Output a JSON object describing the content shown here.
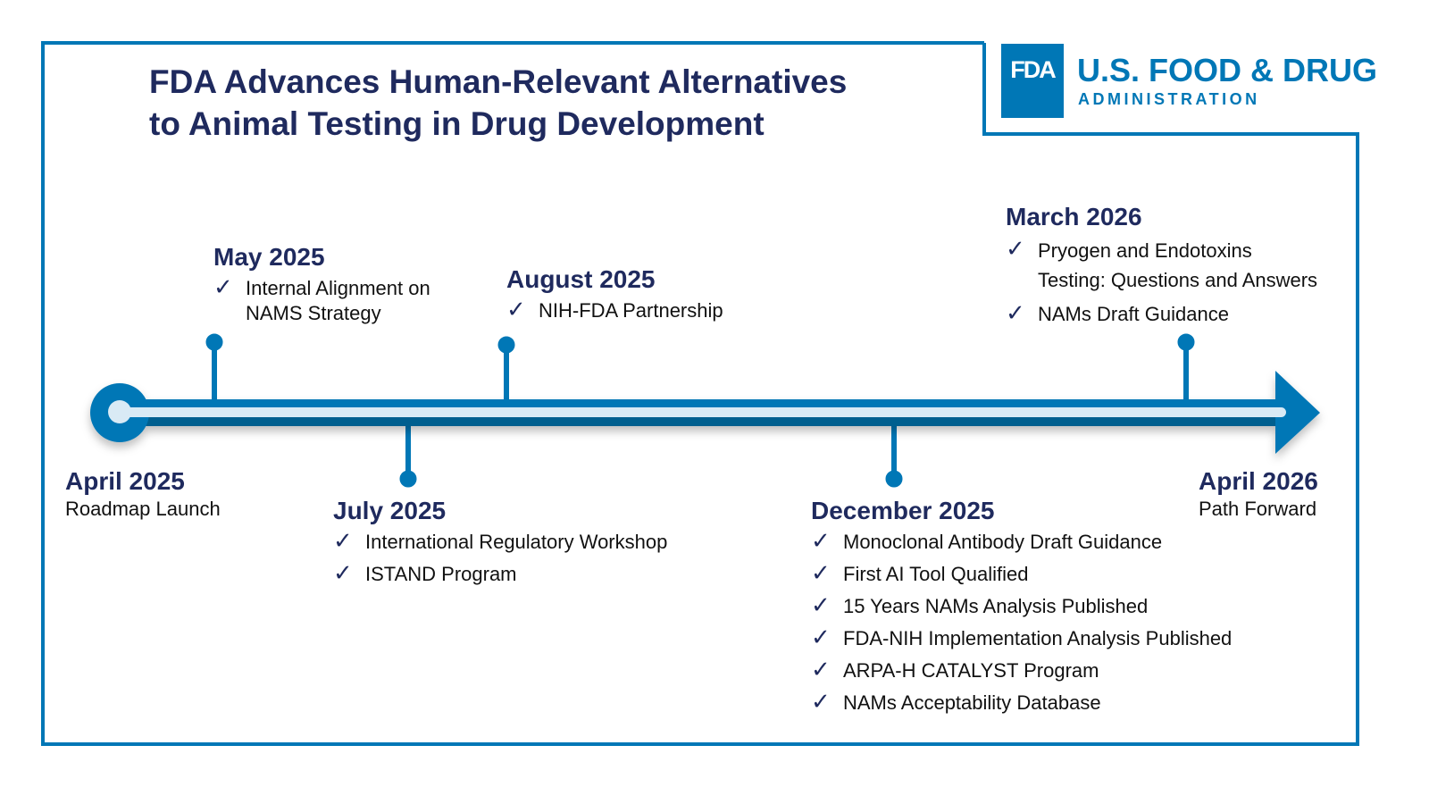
{
  "title_line1": "FDA Advances Human-Relevant Alternatives",
  "title_line2": "to Animal Testing in Drug Development",
  "logo": {
    "mark": "FDA",
    "name": "U.S. FOOD & DRUG",
    "sub": "ADMINISTRATION"
  },
  "colors": {
    "frame": "#0077b6",
    "title": "#1f2a5e",
    "bar_dark": "#005f8f",
    "bar_light": "#d9eaf5"
  },
  "events": {
    "apr2025": {
      "date": "April 2025",
      "desc": "Roadmap Launch"
    },
    "may2025": {
      "date": "May 2025",
      "items": [
        "Internal Alignment on",
        "NAMS Strategy"
      ]
    },
    "jul2025": {
      "date": "July 2025",
      "items": [
        "International Regulatory Workshop",
        "ISTAND Program"
      ]
    },
    "aug2025": {
      "date": "August 2025",
      "items": [
        "NIH-FDA Partnership"
      ]
    },
    "dec2025": {
      "date": "December 2025",
      "items": [
        "Monoclonal Antibody Draft Guidance",
        "First AI Tool Qualified",
        "15 Years NAMs Analysis Published",
        "FDA-NIH Implementation Analysis Published",
        "ARPA-H CATALYST Program",
        "NAMs Acceptability Database"
      ]
    },
    "mar2026": {
      "date": "March 2026",
      "items": [
        "Pryogen and Endotoxins",
        "Testing: Questions and Answers",
        "NAMs Draft Guidance"
      ]
    },
    "apr2026": {
      "date": "April 2026",
      "desc": "Path Forward"
    }
  },
  "check_icon": "check-icon"
}
